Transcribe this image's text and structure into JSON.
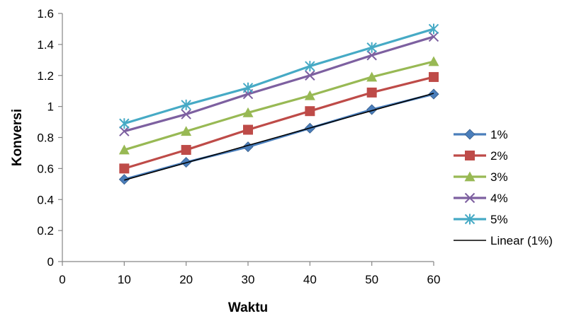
{
  "chart_data": {
    "type": "line",
    "title": "",
    "xlabel": "Waktu",
    "ylabel": "Konversi",
    "xlim": [
      0,
      60
    ],
    "ylim": [
      0,
      1.6
    ],
    "xticks": [
      0,
      10,
      20,
      30,
      40,
      50,
      60
    ],
    "yticks": [
      0,
      0.2,
      0.4,
      0.6,
      0.8,
      1,
      1.2,
      1.4,
      1.6
    ],
    "xtick_labels": [
      "0",
      "10",
      "20",
      "30",
      "40",
      "50",
      "60"
    ],
    "ytick_labels": [
      "0",
      "0.2",
      "0.4",
      "0.6",
      "0.8",
      "1",
      "1.2",
      "1.4",
      "1.6"
    ],
    "grid": false,
    "legend_position": "right",
    "x": [
      10,
      20,
      30,
      40,
      50,
      60
    ],
    "series": [
      {
        "name": "1%",
        "values": [
          0.53,
          0.64,
          0.74,
          0.86,
          0.98,
          1.08
        ],
        "color": "#4a7ebb",
        "marker": "diamond"
      },
      {
        "name": "2%",
        "values": [
          0.6,
          0.72,
          0.85,
          0.97,
          1.09,
          1.19
        ],
        "color": "#be4b48",
        "marker": "square"
      },
      {
        "name": "3%",
        "values": [
          0.72,
          0.84,
          0.96,
          1.07,
          1.19,
          1.29
        ],
        "color": "#98b954",
        "marker": "triangle"
      },
      {
        "name": "4%",
        "values": [
          0.84,
          0.95,
          1.08,
          1.2,
          1.33,
          1.45
        ],
        "color": "#7d60a0",
        "marker": "x"
      },
      {
        "name": "5%",
        "values": [
          0.89,
          1.01,
          1.12,
          1.26,
          1.38,
          1.5
        ],
        "color": "#46aac5",
        "marker": "asterisk"
      }
    ],
    "trendline": {
      "name": "Linear (1%)",
      "x": [
        10,
        60
      ],
      "values": [
        0.525,
        1.085
      ],
      "color": "#000000"
    }
  }
}
